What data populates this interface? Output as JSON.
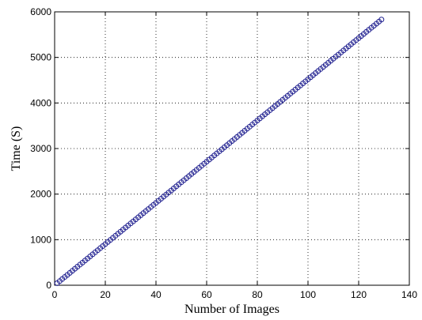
{
  "chart_data": {
    "type": "scatter",
    "xlabel": "Number of Images",
    "ylabel": "Time (S)",
    "xlim": [
      0,
      140
    ],
    "xticks": [
      0,
      20,
      40,
      60,
      80,
      100,
      120,
      140
    ],
    "ylim": [
      0,
      6000
    ],
    "yticks": [
      0,
      1000,
      2000,
      3000,
      4000,
      5000,
      6000
    ],
    "grid": true,
    "series": [
      {
        "color": "#1f1f8f",
        "x": [
          1,
          2,
          3,
          4,
          5,
          6,
          7,
          8,
          9,
          10,
          11,
          12,
          13,
          14,
          15,
          16,
          17,
          18,
          19,
          20,
          21,
          22,
          23,
          24,
          25,
          26,
          27,
          28,
          29,
          30,
          31,
          32,
          33,
          34,
          35,
          36,
          37,
          38,
          39,
          40,
          41,
          42,
          43,
          44,
          45,
          46,
          47,
          48,
          49,
          50,
          51,
          52,
          53,
          54,
          55,
          56,
          57,
          58,
          59,
          60,
          61,
          62,
          63,
          64,
          65,
          66,
          67,
          68,
          69,
          70,
          71,
          72,
          73,
          74,
          75,
          76,
          77,
          78,
          79,
          80,
          81,
          82,
          83,
          84,
          85,
          86,
          87,
          88,
          89,
          90,
          91,
          92,
          93,
          94,
          95,
          96,
          97,
          98,
          99,
          100,
          101,
          102,
          103,
          104,
          105,
          106,
          107,
          108,
          109,
          110,
          111,
          112,
          113,
          114,
          115,
          116,
          117,
          118,
          119,
          120,
          121,
          122,
          123,
          124,
          125,
          126,
          127,
          128,
          129
        ],
        "values": [
          45,
          90,
          136,
          181,
          226,
          271,
          316,
          362,
          407,
          452,
          497,
          542,
          588,
          633,
          678,
          723,
          768,
          814,
          859,
          904,
          949,
          994,
          1040,
          1085,
          1130,
          1175,
          1220,
          1266,
          1311,
          1356,
          1401,
          1446,
          1492,
          1537,
          1582,
          1627,
          1672,
          1718,
          1763,
          1808,
          1853,
          1898,
          1944,
          1989,
          2034,
          2079,
          2124,
          2170,
          2215,
          2260,
          2305,
          2350,
          2396,
          2441,
          2486,
          2531,
          2576,
          2622,
          2667,
          2712,
          2757,
          2802,
          2848,
          2893,
          2938,
          2983,
          3028,
          3074,
          3119,
          3164,
          3209,
          3254,
          3300,
          3345,
          3390,
          3435,
          3480,
          3526,
          3571,
          3616,
          3661,
          3706,
          3752,
          3797,
          3842,
          3887,
          3932,
          3978,
          4023,
          4068,
          4113,
          4158,
          4204,
          4249,
          4294,
          4339,
          4384,
          4430,
          4475,
          4520,
          4565,
          4610,
          4656,
          4701,
          4746,
          4791,
          4836,
          4882,
          4927,
          4972,
          5017,
          5062,
          5108,
          5153,
          5198,
          5243,
          5288,
          5334,
          5379,
          5424,
          5469,
          5514,
          5560,
          5605,
          5650,
          5695,
          5740,
          5786,
          5831
        ]
      }
    ]
  }
}
